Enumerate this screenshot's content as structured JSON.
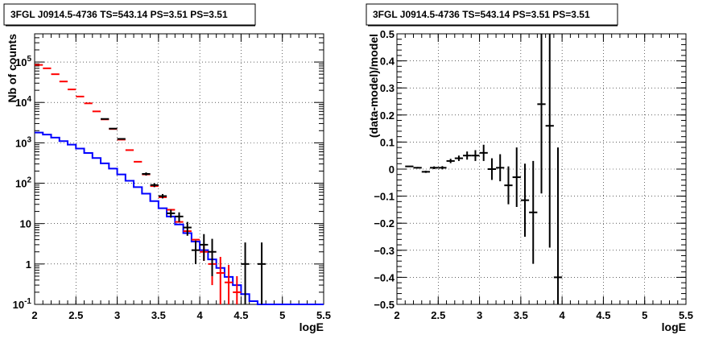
{
  "chart_data": [
    {
      "type": "line",
      "title": "3FGL J0914.5-4736 TS=543.14 PS=3.51 PS=3.51",
      "xlabel": "logE",
      "ylabel": "Nb of counts",
      "xlim": [
        2,
        5.5
      ],
      "ylim": [
        0.1,
        500000
      ],
      "yscale": "log",
      "grid": true,
      "x_ticks": [
        "2",
        "2.5",
        "3",
        "3.5",
        "4",
        "4.5",
        "5",
        "5.5"
      ],
      "y_ticks": [
        "10^-1",
        "1",
        "10",
        "10^2",
        "10^3",
        "10^4",
        "10^5"
      ],
      "series": [
        {
          "name": "",
          "kind": "step",
          "color": "#0000ff",
          "bin_edges": [
            2.0,
            2.1,
            2.2,
            2.3,
            2.4,
            2.5,
            2.6,
            2.7,
            2.8,
            2.9,
            3.0,
            3.1,
            3.2,
            3.3,
            3.4,
            3.5,
            3.6,
            3.7,
            3.8,
            3.9,
            4.0,
            4.1,
            4.2,
            4.3,
            4.4,
            4.5,
            4.6,
            4.7,
            4.8,
            4.9,
            5.0,
            5.1,
            5.2,
            5.3,
            5.4,
            5.5
          ],
          "values": [
            1800,
            1600,
            1350,
            1100,
            900,
            720,
            560,
            420,
            310,
            230,
            165,
            115,
            80,
            55,
            36,
            24,
            15,
            9.5,
            5.8,
            3.6,
            2.2,
            1.3,
            0.8,
            0.48,
            0.3,
            0.18,
            0.12,
            0.1,
            0.1,
            0.1,
            0.1,
            0.1,
            0.1,
            0.1,
            0.1
          ]
        },
        {
          "name": "",
          "kind": "points",
          "color": "#ff0000",
          "x": [
            2.05,
            2.15,
            2.25,
            2.35,
            2.45,
            2.55,
            2.65,
            2.75,
            2.85,
            2.95,
            3.05,
            3.15,
            3.25,
            3.35,
            3.45,
            3.55,
            3.65,
            3.75,
            3.85,
            3.95,
            4.05,
            4.15,
            4.25,
            4.35,
            4.45
          ],
          "y": [
            85000,
            70000,
            50000,
            33000,
            21000,
            14000,
            9500,
            6000,
            3800,
            2200,
            1200,
            660,
            340,
            165,
            85,
            45,
            22,
            11,
            6.5,
            4,
            2,
            1,
            0.6,
            0.35,
            0.2
          ],
          "yerr_low": [
            0,
            0,
            0,
            0,
            0,
            0,
            0,
            0,
            0,
            0,
            0,
            0,
            0,
            0,
            0,
            0,
            0,
            0,
            0,
            0,
            0.8,
            0.7,
            0.5,
            0.25,
            0.1
          ],
          "yerr_high": [
            0,
            0,
            0,
            0,
            0,
            0,
            0,
            0,
            0,
            0,
            0,
            0,
            0,
            0,
            0,
            0,
            0,
            0,
            0,
            0,
            1.0,
            1.0,
            0.9,
            0.6,
            0.3
          ]
        },
        {
          "name": "",
          "kind": "points",
          "color": "#000000",
          "x": [
            2.85,
            2.95,
            3.05,
            3.35,
            3.45,
            3.55,
            3.65,
            3.75,
            3.85,
            3.95,
            4.05,
            4.15,
            4.55,
            4.75
          ],
          "y": [
            3900,
            2250,
            1250,
            170,
            90,
            48,
            18,
            15,
            8,
            2.2,
            3,
            2,
            1,
            1
          ],
          "yerr_low": [
            0,
            0,
            0,
            15,
            10,
            6,
            4,
            4,
            3,
            1.2,
            1.8,
            1.5,
            0.95,
            0.95
          ],
          "yerr_high": [
            0,
            0,
            0,
            15,
            10,
            6,
            4,
            4,
            3,
            1.6,
            2.5,
            2.2,
            2.4,
            2.4
          ]
        }
      ]
    },
    {
      "type": "scatter",
      "title": "3FGL J0914.5-4736 TS=543.14 PS=3.51 PS=3.51",
      "xlabel": "logE",
      "ylabel": "(data-model)/model",
      "xlim": [
        2,
        5.5
      ],
      "ylim": [
        -0.5,
        0.5
      ],
      "grid": true,
      "x_ticks": [
        "2",
        "2.5",
        "3",
        "3.5",
        "4",
        "4.5",
        "5",
        "5.5"
      ],
      "y_ticks": [
        "−0.5",
        "−0.4",
        "−0.3",
        "−0.2",
        "−0.1",
        "0",
        "0.1",
        "0.2",
        "0.3",
        "0.4",
        "0.5"
      ],
      "series": [
        {
          "name": "",
          "color": "#000000",
          "x": [
            2.15,
            2.25,
            2.35,
            2.45,
            2.55,
            2.65,
            2.75,
            2.85,
            2.95,
            3.05,
            3.15,
            3.25,
            3.35,
            3.45,
            3.55,
            3.65,
            3.75,
            3.85,
            3.95
          ],
          "y": [
            0.01,
            0.005,
            -0.01,
            0.005,
            0.005,
            0.03,
            0.04,
            0.05,
            0.05,
            0.06,
            0.0,
            0.005,
            -0.06,
            -0.03,
            -0.115,
            -0.16,
            0.24,
            0.16,
            -0.4
          ],
          "yerr": [
            0.002,
            0.003,
            0.004,
            0.005,
            0.006,
            0.008,
            0.01,
            0.015,
            0.02,
            0.03,
            0.04,
            0.05,
            0.07,
            0.11,
            0.135,
            0.19,
            0.33,
            0.45,
            0.48
          ]
        }
      ]
    }
  ],
  "panels": [
    {
      "title": "3FGL J0914.5-4736 TS=543.14 PS=3.51 PS=3.51",
      "xlabel": "logE",
      "ylabel": "Nb of counts"
    },
    {
      "title": "3FGL J0914.5-4736 TS=543.14 PS=3.51 PS=3.51",
      "xlabel": "logE",
      "ylabel": "(data-model)/model"
    }
  ]
}
